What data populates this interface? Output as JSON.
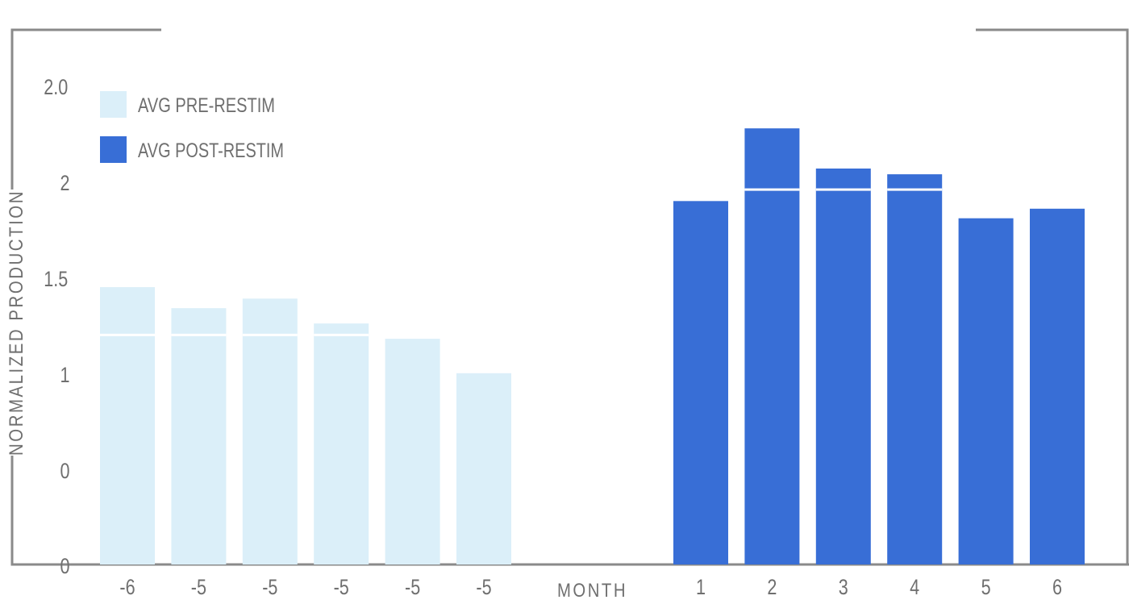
{
  "chart_data": {
    "type": "bar",
    "xlabel": "MONTH",
    "ylabel": "NORMALIZED PRODUCTION",
    "y_tick_labels": [
      "0",
      "0",
      "1",
      "1.5",
      "2",
      "2.0"
    ],
    "ylim": [
      0,
      2.5
    ],
    "grid": false,
    "legend_position": "top-left",
    "series": [
      {
        "name": "AVG PRE-RESTIM",
        "color": "#dbeff9",
        "categories": [
          "-6",
          "-5",
          "-5",
          "-5",
          "-5",
          "-5"
        ],
        "values": [
          1.45,
          1.34,
          1.39,
          1.26,
          1.18,
          1.0
        ]
      },
      {
        "name": "AVG POST-RESTIM",
        "color": "#386ed6",
        "categories": [
          "1",
          "2",
          "3",
          "4",
          "5",
          "6"
        ],
        "values": [
          1.9,
          2.28,
          2.07,
          2.04,
          1.81,
          1.86
        ]
      }
    ],
    "reference_line": {
      "color": "#ffffff",
      "series_levels": [
        1.2,
        1.96
      ]
    },
    "frame_color": "#8a8a8a",
    "text_color": "#6f6f6f"
  }
}
